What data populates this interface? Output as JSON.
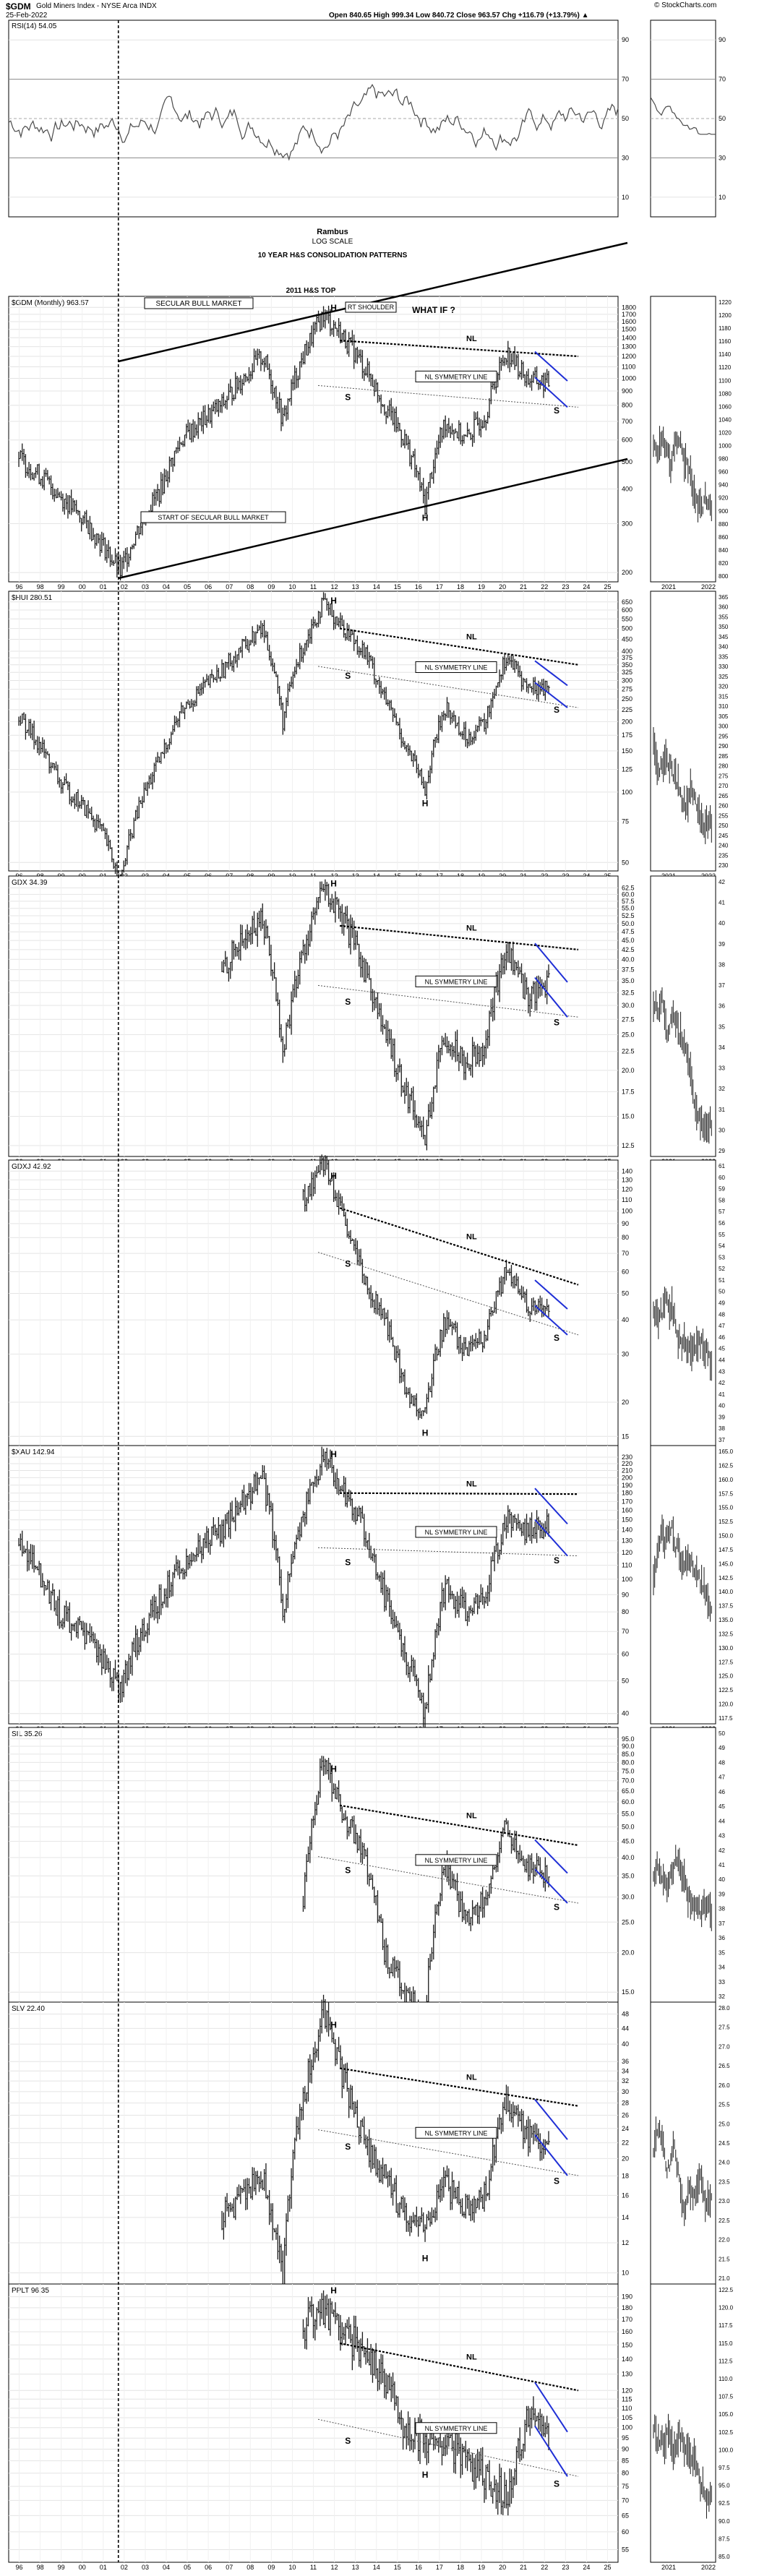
{
  "header": {
    "symbol": "$GDM",
    "name": "Gold Miners Index - NYSE Arca INDX",
    "date": "25-Feb-2022",
    "ohlc": "Open 840.65  High 999.34  Low 840.72  Close 963.57  Chg +116.79 (+13.79%) ▲",
    "credit": "© StockCharts.com"
  },
  "rsi": {
    "label": "RSI(14) 54.05",
    "ticks": [
      "90",
      "70",
      "50",
      "30",
      "10"
    ],
    "levels": [
      90,
      70,
      50,
      30,
      10
    ]
  },
  "x_axis": {
    "years": [
      "96",
      "98",
      "99",
      "00",
      "01",
      "02",
      "03",
      "04",
      "05",
      "06",
      "07",
      "08",
      "09",
      "10",
      "11",
      "12",
      "13",
      "14",
      "15",
      "16",
      "17",
      "18",
      "19",
      "20",
      "21",
      "22",
      "23",
      "24",
      "25"
    ],
    "inset_years": [
      "2021",
      "2022"
    ]
  },
  "annotations": {
    "rambus_title": "Rambus",
    "rambus_scale": "LOG SCALE",
    "rambus_subtitle": "10 YEAR H&S CONSOLIDATION PATTERNS",
    "top_2011": "2011 H&S TOP",
    "secular_bull": "SECULAR BULL MARKET",
    "start_secular": "START OF SECULAR BULL MARKET",
    "rt_shoulder": "RT SHOULDER",
    "what_if": "WHAT IF ?",
    "nl": "NL",
    "nl_symmetry": "NL SYMMETRY LINE",
    "h": "H",
    "s": "S"
  },
  "colors": {
    "price": "#1a1a1a",
    "trend": "#000000",
    "blue": "#1f2fd6",
    "grid": "#e4e4e4",
    "rsi_line": "#4a4a4a",
    "rsi_green": "#2e8b2e"
  },
  "chart_data": [
    {
      "type": "line",
      "title": "$GDM (Monthly) 963.57",
      "scale": "log",
      "y_ticks": [
        "1800",
        "1700",
        "1600",
        "1500",
        "1400",
        "1300",
        "1200",
        "1100",
        "1000",
        "900",
        "800",
        "700",
        "600",
        "500",
        "400",
        "300",
        "200"
      ],
      "inset_ticks": [
        "1220",
        "1200",
        "1180",
        "1160",
        "1140",
        "1120",
        "1100",
        "1080",
        "1060",
        "1040",
        "1020",
        "1000",
        "980",
        "960",
        "940",
        "920",
        "900",
        "880",
        "860",
        "840",
        "820",
        "800"
      ],
      "x": [
        1996,
        1998,
        2000,
        2001,
        2003,
        2004,
        2006,
        2008,
        2009,
        2011,
        2012,
        2013,
        2014,
        2015,
        2016,
        2017,
        2018,
        2019,
        2020,
        2021,
        2022
      ],
      "values": [
        520,
        380,
        260,
        200,
        400,
        600,
        800,
        1200,
        700,
        1700,
        1400,
        1100,
        800,
        600,
        350,
        700,
        600,
        750,
        1250,
        1000,
        960
      ]
    },
    {
      "type": "line",
      "title": "$HUI 280.51",
      "scale": "log",
      "y_ticks": [
        "650",
        "600",
        "550",
        "500",
        "450",
        "400",
        "375",
        "350",
        "325",
        "300",
        "275",
        "250",
        "225",
        "200",
        "175",
        "150",
        "125",
        "100",
        "75",
        "50"
      ],
      "inset_ticks": [
        "365",
        "360",
        "355",
        "350",
        "345",
        "340",
        "335",
        "330",
        "325",
        "320",
        "315",
        "310",
        "305",
        "300",
        "295",
        "290",
        "285",
        "280",
        "275",
        "270",
        "265",
        "260",
        "255",
        "250",
        "245",
        "240",
        "235",
        "230"
      ],
      "x": [
        1996,
        1998,
        2000,
        2001,
        2003,
        2004,
        2006,
        2008,
        2009,
        2011,
        2012,
        2013,
        2014,
        2015,
        2016,
        2017,
        2018,
        2019,
        2020,
        2021,
        2022
      ],
      "values": [
        210,
        110,
        70,
        40,
        140,
        220,
        330,
        500,
        200,
        640,
        500,
        400,
        250,
        160,
        100,
        230,
        170,
        200,
        380,
        280,
        280
      ]
    },
    {
      "type": "line",
      "title": "GDX 34.39",
      "scale": "log",
      "y_ticks": [
        "62.5",
        "60.0",
        "57.5",
        "55.0",
        "52.5",
        "50.0",
        "47.5",
        "45.0",
        "42.5",
        "40.0",
        "37.5",
        "35.0",
        "32.5",
        "30.0",
        "27.5",
        "25.0",
        "22.5",
        "20.0",
        "17.5",
        "15.0",
        "12.5"
      ],
      "inset_ticks": [
        "42",
        "41",
        "40",
        "39",
        "38",
        "37",
        "36",
        "35",
        "34",
        "33",
        "32",
        "31",
        "30",
        "29"
      ],
      "x": [
        2006,
        2008,
        2009,
        2011,
        2012,
        2013,
        2014,
        2015,
        2016,
        2017,
        2018,
        2019,
        2020,
        2021,
        2022
      ],
      "values": [
        38,
        52,
        22,
        62,
        50,
        38,
        25,
        18,
        13,
        25,
        21,
        24,
        43,
        32,
        34
      ]
    },
    {
      "type": "line",
      "title": "GDXJ 42.92",
      "scale": "log",
      "y_ticks": [
        "140",
        "130",
        "120",
        "110",
        "100",
        "90",
        "80",
        "70",
        "60",
        "50",
        "40",
        "30",
        "20",
        "15"
      ],
      "inset_ticks": [
        "61",
        "60",
        "59",
        "58",
        "57",
        "56",
        "55",
        "54",
        "53",
        "52",
        "51",
        "50",
        "49",
        "48",
        "47",
        "46",
        "45",
        "44",
        "43",
        "42",
        "41",
        "40",
        "39",
        "38",
        "37"
      ],
      "x": [
        2010,
        2011,
        2012,
        2013,
        2014,
        2015,
        2016,
        2017,
        2018,
        2019,
        2020,
        2021,
        2022
      ],
      "values": [
        110,
        150,
        90,
        55,
        40,
        22,
        18,
        40,
        30,
        35,
        60,
        45,
        43
      ]
    },
    {
      "type": "line",
      "title": "$XAU 142.94",
      "scale": "log",
      "y_ticks": [
        "230",
        "220",
        "210",
        "200",
        "190",
        "180",
        "170",
        "160",
        "150",
        "140",
        "130",
        "120",
        "110",
        "100",
        "90",
        "80",
        "70",
        "60",
        "50",
        "40"
      ],
      "inset_ticks": [
        "165.0",
        "162.5",
        "160.0",
        "157.5",
        "155.0",
        "152.5",
        "150.0",
        "147.5",
        "145.0",
        "142.5",
        "140.0",
        "137.5",
        "135.0",
        "132.5",
        "130.0",
        "127.5",
        "125.0",
        "122.5",
        "120.0",
        "117.5"
      ],
      "x": [
        1996,
        1998,
        2000,
        2001,
        2003,
        2004,
        2006,
        2008,
        2009,
        2011,
        2012,
        2013,
        2014,
        2015,
        2016,
        2017,
        2018,
        2019,
        2020,
        2021,
        2022
      ],
      "values": [
        130,
        80,
        60,
        48,
        90,
        110,
        140,
        200,
        80,
        230,
        180,
        140,
        90,
        60,
        40,
        95,
        80,
        90,
        150,
        140,
        143
      ]
    },
    {
      "type": "line",
      "title": "SIL 35.26",
      "scale": "log",
      "y_ticks": [
        "95.0",
        "90.0",
        "85.0",
        "80.0",
        "75.0",
        "70.0",
        "65.0",
        "60.0",
        "55.0",
        "50.0",
        "45.0",
        "40.0",
        "35.0",
        "30.0",
        "25.0",
        "20.0",
        "15.0"
      ],
      "inset_ticks": [
        "50",
        "49",
        "48",
        "47",
        "46",
        "45",
        "44",
        "43",
        "42",
        "41",
        "40",
        "39",
        "38",
        "37",
        "36",
        "35",
        "34",
        "33",
        "32"
      ],
      "x": [
        2010,
        2011,
        2012,
        2013,
        2014,
        2015,
        2016,
        2017,
        2018,
        2019,
        2020,
        2021,
        2022
      ],
      "values": [
        30,
        80,
        55,
        40,
        20,
        15,
        13,
        38,
        25,
        30,
        50,
        38,
        35
      ]
    },
    {
      "type": "line",
      "title": "SLV 22.40",
      "scale": "log",
      "y_ticks": [
        "48",
        "44",
        "40",
        "36",
        "34",
        "32",
        "30",
        "28",
        "26",
        "24",
        "22",
        "20",
        "18",
        "16",
        "14",
        "12",
        "10"
      ],
      "inset_ticks": [
        "28.0",
        "27.5",
        "27.0",
        "26.5",
        "26.0",
        "25.5",
        "25.0",
        "24.5",
        "24.0",
        "23.5",
        "23.0",
        "22.5",
        "22.0",
        "21.5",
        "21.0"
      ],
      "x": [
        2006,
        2008,
        2009,
        2011,
        2012,
        2013,
        2014,
        2015,
        2016,
        2017,
        2018,
        2019,
        2020,
        2021,
        2022
      ],
      "values": [
        14,
        18,
        10,
        48,
        32,
        22,
        18,
        14,
        13,
        17,
        15,
        16,
        28,
        23,
        22
      ]
    },
    {
      "type": "line",
      "title": "PPLT 96.35",
      "scale": "log",
      "y_ticks": [
        "190",
        "180",
        "170",
        "160",
        "150",
        "140",
        "130",
        "120",
        "115",
        "110",
        "105",
        "100",
        "95",
        "90",
        "85",
        "80",
        "75",
        "70",
        "65",
        "60",
        "55"
      ],
      "inset_ticks": [
        "122.5",
        "120.0",
        "117.5",
        "115.0",
        "112.5",
        "110.0",
        "107.5",
        "105.0",
        "102.5",
        "100.0",
        "97.5",
        "95.0",
        "92.5",
        "90.0",
        "87.5",
        "85.0"
      ],
      "x": [
        2010,
        2011,
        2012,
        2013,
        2014,
        2015,
        2016,
        2017,
        2018,
        2019,
        2020,
        2021,
        2022
      ],
      "values": [
        165,
        180,
        160,
        145,
        130,
        100,
        95,
        95,
        85,
        80,
        70,
        105,
        96
      ]
    }
  ]
}
